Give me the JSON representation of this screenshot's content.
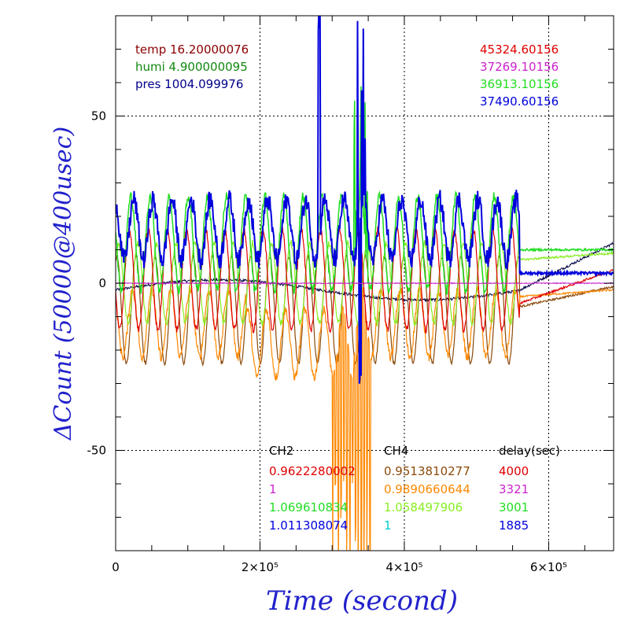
{
  "chart_data": {
    "type": "line",
    "xlabel": "Time (second)",
    "ylabel": "ΔCount (50000@400usec)",
    "xlim": [
      0,
      690000
    ],
    "ylim": [
      -80,
      80
    ],
    "x_ticks": [
      {
        "value": 0,
        "label": "0"
      },
      {
        "value": 200000,
        "label": "2×10⁵"
      },
      {
        "value": 400000,
        "label": "4×10⁵"
      },
      {
        "value": 600000,
        "label": "6×10⁵"
      }
    ],
    "y_ticks": [
      {
        "value": 50,
        "label": "50"
      },
      {
        "value": 0,
        "label": "0"
      },
      {
        "value": -50,
        "label": "-50"
      }
    ],
    "grid": true,
    "series_colors": {
      "red": "#e00000",
      "magenta": "#cc22cc",
      "green": "#22dd22",
      "blue": "#0000dd",
      "brown": "#8b4a0a",
      "orange": "#ff8800",
      "lightgreen": "#88ee22",
      "darkgreen": "#118811",
      "navy": "#000044"
    },
    "env_labels": [
      {
        "text": "temp 16.20000076",
        "color": "#8b0000"
      },
      {
        "text": "humi 4.900000095",
        "color": "#118811"
      },
      {
        "text": "pres 1004.099976",
        "color": "#00008b"
      }
    ],
    "counts_labels": [
      {
        "text": "45324.60156",
        "color": "#e00000"
      },
      {
        "text": "37269.10156",
        "color": "#cc22cc"
      },
      {
        "text": "36913.10156",
        "color": "#22dd22"
      },
      {
        "text": "37490.60156",
        "color": "#0000dd"
      }
    ],
    "table": {
      "headers": [
        "CH2",
        "CH4",
        "delay(sec)"
      ],
      "rows": [
        {
          "ch2": "0.9622280002",
          "ch2_color": "#e00000",
          "ch4": "0.9513810277",
          "ch4_color": "#8b4a0a",
          "delay": "4000",
          "delay_color": "#e00000"
        },
        {
          "ch2": "1",
          "ch2_color": "#cc22cc",
          "ch4": "0.9890660644",
          "ch4_color": "#ff8800",
          "delay": "3321",
          "delay_color": "#cc22cc"
        },
        {
          "ch2": "1.069610834",
          "ch2_color": "#22dd22",
          "ch4": "1.058497906",
          "ch4_color": "#88ee22",
          "delay": "3001",
          "delay_color": "#22dd22"
        },
        {
          "ch2": "1.011308074",
          "ch2_color": "#0000dd",
          "ch4": "1",
          "ch4_color": "#00cccc",
          "delay": "1885",
          "delay_color": "#0000dd"
        }
      ]
    }
  }
}
